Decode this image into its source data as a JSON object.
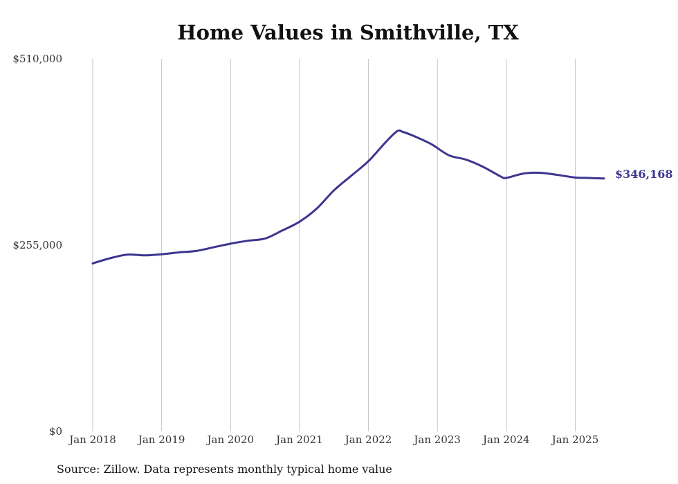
{
  "chart_data": {
    "type": "line",
    "title": "Home Values in Smithville, TX",
    "source": "Source: Zillow. Data represents monthly typical home value",
    "y_tick_labels": [
      "$0",
      "$255,000",
      "$510,000"
    ],
    "y_ticks": [
      0,
      255000,
      510000
    ],
    "ylim": [
      0,
      510000
    ],
    "x_tick_labels": [
      "Jan 2018",
      "Jan 2019",
      "Jan 2020",
      "Jan 2021",
      "Jan 2022",
      "Jan 2023",
      "Jan 2024",
      "Jan 2025"
    ],
    "x_ticks": [
      "2018-01",
      "2019-01",
      "2020-01",
      "2021-01",
      "2022-01",
      "2023-01",
      "2024-01",
      "2025-01"
    ],
    "xlim": [
      "2018-01",
      "2025-06"
    ],
    "grid": "vertical",
    "line_color": "#3d3590",
    "end_label": "$346,168",
    "series": [
      {
        "x": [
          "2018-01",
          "2018-04",
          "2018-07",
          "2018-10",
          "2019-01",
          "2019-04",
          "2019-07",
          "2019-10",
          "2020-01",
          "2020-04",
          "2020-07",
          "2020-10",
          "2021-01",
          "2021-04",
          "2021-07",
          "2021-10",
          "2022-01",
          "2022-04",
          "2022-06",
          "2022-07",
          "2022-09",
          "2022-12",
          "2023-03",
          "2023-06",
          "2023-09",
          "2023-12",
          "2024-01",
          "2024-04",
          "2024-07",
          "2024-10",
          "2025-01",
          "2025-03",
          "2025-06"
        ],
        "values": [
          230000,
          237000,
          242000,
          241000,
          242500,
          245000,
          247000,
          252000,
          257000,
          261000,
          264000,
          275000,
          287000,
          305000,
          330000,
          350000,
          370000,
          396000,
          411000,
          410000,
          404000,
          393000,
          378000,
          372000,
          362000,
          349000,
          347000,
          353000,
          354000,
          351000,
          347500,
          347000,
          346168
        ]
      }
    ]
  }
}
